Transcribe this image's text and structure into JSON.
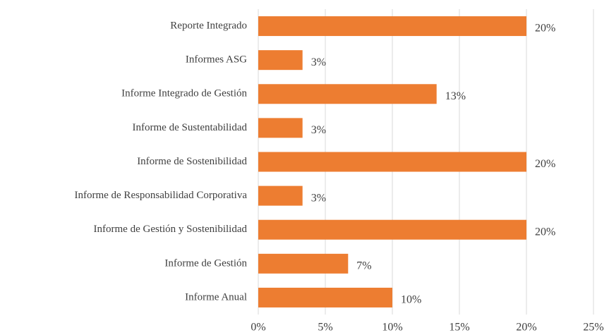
{
  "chart_data": {
    "type": "hbar",
    "categories": [
      "Reporte  Integrado",
      "Informes ASG",
      "Informe Integrado de Gestión",
      "Informe de Sustentabilidad",
      "Informe de Sostenibilidad",
      "Informe de Responsabilidad Corporativa",
      "Informe de Gestión y Sostenibilidad",
      "Informe de Gestión",
      "Informe Anual"
    ],
    "values": [
      20,
      3.3,
      13.3,
      3.3,
      20,
      3.3,
      20,
      6.7,
      10
    ],
    "value_labels": [
      "20%",
      "3%",
      "13%",
      "3%",
      "20%",
      "3%",
      "20%",
      "7%",
      "10%"
    ],
    "color": "#ed7d31",
    "xlim": [
      0,
      25
    ],
    "xticks": [
      {
        "value": 0,
        "label": "0%"
      },
      {
        "value": 5,
        "label": "5%"
      },
      {
        "value": 10,
        "label": "10%"
      },
      {
        "value": 15,
        "label": "15%"
      },
      {
        "value": 20,
        "label": "20%"
      },
      {
        "value": 25,
        "label": "25%"
      }
    ],
    "grid": true
  }
}
